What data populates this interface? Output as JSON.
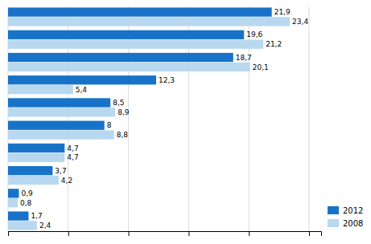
{
  "chart_data": {
    "type": "bar",
    "orientation": "horizontal",
    "categories": [
      null,
      null,
      null,
      null,
      null,
      null,
      null,
      null,
      null,
      null
    ],
    "series": [
      {
        "name": "2012",
        "color": "#1873C8",
        "values": [
          21.9,
          19.6,
          18.7,
          12.3,
          8.5,
          8.0,
          4.7,
          3.7,
          0.9,
          1.7
        ],
        "value_labels": [
          "21,9",
          "19,6",
          "18,7",
          "12,3",
          "8,5",
          "8",
          "4,7",
          "3,7",
          "0,9",
          "1,7"
        ]
      },
      {
        "name": "2008",
        "color": "#B8D8F0",
        "values": [
          23.4,
          21.2,
          20.1,
          5.4,
          8.9,
          8.8,
          4.7,
          4.2,
          0.8,
          2.4
        ],
        "value_labels": [
          "23,4",
          "21,2",
          "20,1",
          "5,4",
          "8,9",
          "8,8",
          "4,7",
          "4,2",
          "0,8",
          "2,4"
        ]
      }
    ],
    "xlim": [
      0,
      26
    ],
    "xticks": [
      0,
      5,
      10,
      15,
      20,
      25
    ],
    "tick_labels": false,
    "grid": true,
    "data_labels": true,
    "legend": "lower right"
  }
}
